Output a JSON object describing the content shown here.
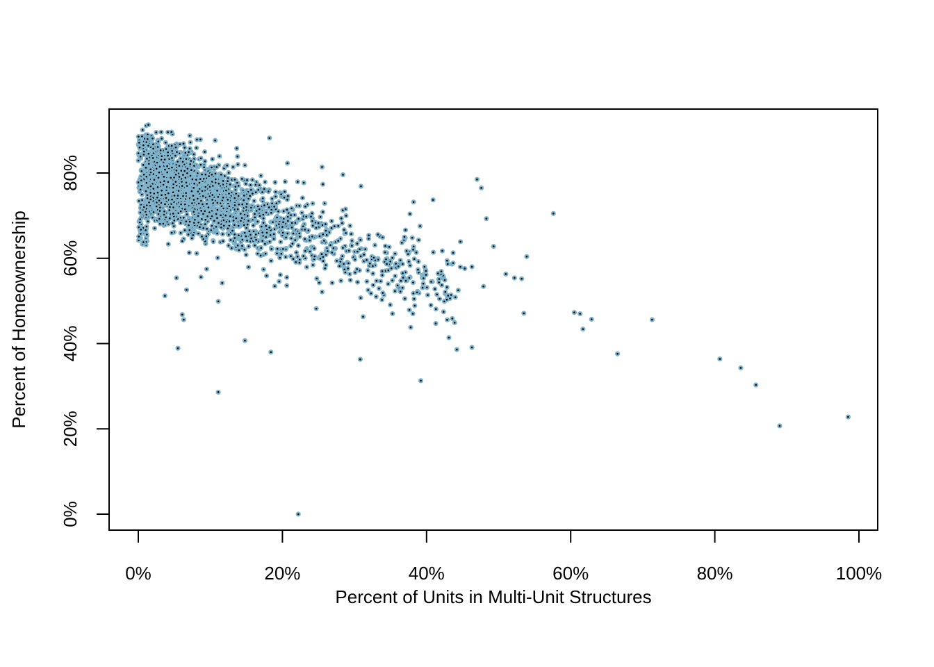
{
  "chart_data": {
    "type": "scatter",
    "title": "",
    "xlabel": "Percent of Units in Multi-Unit Structures",
    "ylabel": "Percent of Homeownership",
    "xlim": [
      -4,
      102.5
    ],
    "ylim": [
      -3.5,
      95
    ],
    "x_ticks": [
      0,
      20,
      40,
      60,
      80,
      100
    ],
    "x_tick_labels": [
      "0%",
      "20%",
      "40%",
      "60%",
      "80%",
      "100%"
    ],
    "y_ticks": [
      0,
      20,
      40,
      60,
      80
    ],
    "y_tick_labels": [
      "0%",
      "20%",
      "40%",
      "60%",
      "80%"
    ],
    "grid": false,
    "legend": "none",
    "point_fill": "#7fb4cc",
    "point_center": "#0a0a0a",
    "outlier_points": [
      [
        22.2,
        0.0
      ],
      [
        11.1,
        28.6
      ],
      [
        39.2,
        31.3
      ],
      [
        30.8,
        36.3
      ],
      [
        18.4,
        38.0
      ],
      [
        5.5,
        38.9
      ],
      [
        44.2,
        38.6
      ],
      [
        46.3,
        39.1
      ],
      [
        14.8,
        40.7
      ],
      [
        43.1,
        41.4
      ],
      [
        37.8,
        43.8
      ],
      [
        43.9,
        44.9
      ],
      [
        6.3,
        45.6
      ],
      [
        31.2,
        46.3
      ],
      [
        6.1,
        46.8
      ],
      [
        53.5,
        47.1
      ],
      [
        61.7,
        43.4
      ],
      [
        60.5,
        47.3
      ],
      [
        61.3,
        47.0
      ],
      [
        62.9,
        45.7
      ],
      [
        71.3,
        45.6
      ],
      [
        66.5,
        37.6
      ],
      [
        80.7,
        36.4
      ],
      [
        83.6,
        34.3
      ],
      [
        85.7,
        30.3
      ],
      [
        89.0,
        20.7
      ],
      [
        98.5,
        22.8
      ],
      [
        57.6,
        70.5
      ],
      [
        47.0,
        78.5
      ],
      [
        47.6,
        76.5
      ],
      [
        48.3,
        69.3
      ],
      [
        49.3,
        62.8
      ],
      [
        53.9,
        60.4
      ],
      [
        52.2,
        55.4
      ],
      [
        53.2,
        55.2
      ],
      [
        51.0,
        56.3
      ],
      [
        40.6,
        49.0
      ],
      [
        41.3,
        48.1
      ],
      [
        11.1,
        49.9
      ],
      [
        3.7,
        51.2
      ],
      [
        6.7,
        52.6
      ],
      [
        5.3,
        55.4
      ],
      [
        8.7,
        55.6
      ],
      [
        42.6,
        52.1
      ],
      [
        38.1,
        47.0
      ],
      [
        17.8,
        55.9
      ],
      [
        24.7,
        48.2
      ],
      [
        47.9,
        53.4
      ],
      [
        44.4,
        52.5
      ],
      [
        45.3,
        57.6
      ],
      [
        46.3,
        58.0
      ],
      [
        44.7,
        63.9
      ],
      [
        40.9,
        73.7
      ],
      [
        38.2,
        73.2
      ],
      [
        18.2,
        88.2
      ],
      [
        1.1,
        91.1
      ],
      [
        1.4,
        91.3
      ],
      [
        0.6,
        90.1
      ],
      [
        4.6,
        89.6
      ],
      [
        25.5,
        81.4
      ],
      [
        28.4,
        79.6
      ],
      [
        30.9,
        76.9
      ],
      [
        20.7,
        82.3
      ],
      [
        37.7,
        70.4
      ]
    ]
  }
}
